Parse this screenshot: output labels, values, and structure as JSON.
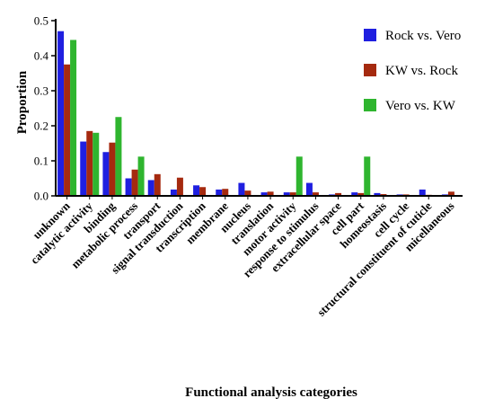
{
  "chart_data": {
    "type": "bar",
    "xlabel": "Functional analysis categories",
    "ylabel": "Proportion",
    "ylim": [
      0,
      0.5
    ],
    "yticks": [
      "0.0",
      "0.1",
      "0.2",
      "0.3",
      "0.4",
      "0.5"
    ],
    "grid": false,
    "legend_position": "top-right",
    "categories": [
      "unknown",
      "catalytic activity",
      "binding",
      "metabolic process",
      "transport",
      "signal transduction",
      "transcription",
      "membrane",
      "nucleus",
      "translation",
      "motor activity",
      "response to stimulus",
      "extracellular space",
      "cell part",
      "homeostasis",
      "cell cycle",
      "structural constituent of cuticle",
      "micellaneous"
    ],
    "series": [
      {
        "name": "Rock vs. Vero",
        "color": "#1f1fe0",
        "values": [
          0.47,
          0.155,
          0.125,
          0.05,
          0.045,
          0.018,
          0.03,
          0.018,
          0.037,
          0.01,
          0.01,
          0.037,
          0.004,
          0.01,
          0.008,
          0.004,
          0.018,
          0.004
        ]
      },
      {
        "name": "KW vs. Rock",
        "color": "#a52a0f",
        "values": [
          0.375,
          0.185,
          0.152,
          0.075,
          0.062,
          0.052,
          0.025,
          0.02,
          0.015,
          0.012,
          0.01,
          0.01,
          0.008,
          0.008,
          0.005,
          0.004,
          0.003,
          0.012
        ]
      },
      {
        "name": "Vero vs. KW",
        "color": "#2fb52f",
        "values": [
          0.445,
          0.18,
          0.225,
          0.112,
          0.001,
          0.001,
          0.001,
          0.001,
          0.001,
          0.001,
          0.112,
          0.001,
          0.001,
          0.112,
          0.001,
          0.001,
          0.001,
          0.001
        ]
      }
    ]
  }
}
